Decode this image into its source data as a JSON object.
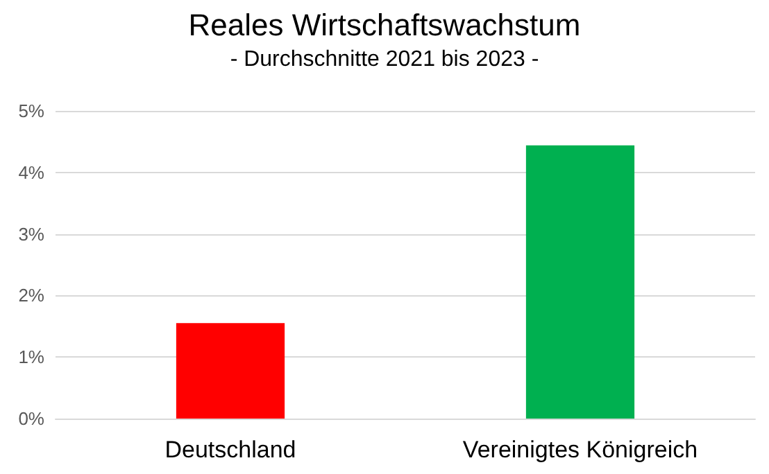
{
  "chart_data": {
    "type": "bar",
    "title": "Reales Wirtschaftswachstum",
    "subtitle": "- Durchschnitte 2021 bis 2023 -",
    "categories": [
      "Deutschland",
      "Vereinigtes Königreich"
    ],
    "values": [
      1.55,
      4.44
    ],
    "colors": [
      "#ff0000",
      "#00b050"
    ],
    "ylim": [
      0,
      5
    ],
    "yticks": [
      {
        "value": 0,
        "label": "0%"
      },
      {
        "value": 1,
        "label": "1%"
      },
      {
        "value": 2,
        "label": "2%"
      },
      {
        "value": 3,
        "label": "3%"
      },
      {
        "value": 4,
        "label": "4%"
      },
      {
        "value": 5,
        "label": "5%"
      }
    ],
    "grid": "y"
  }
}
